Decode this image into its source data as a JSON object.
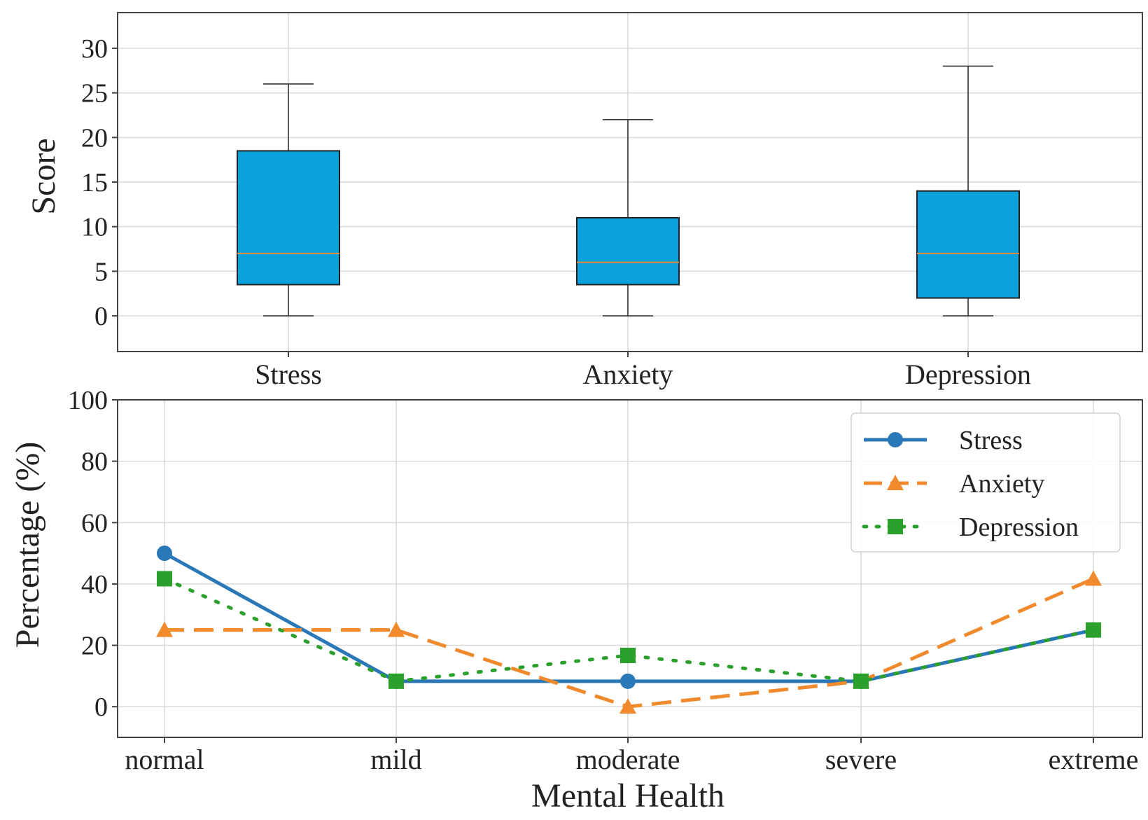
{
  "chart_data": [
    {
      "type": "box",
      "ylabel": "Score",
      "xlabel": "",
      "ylim": [
        -4,
        34
      ],
      "yticks": [
        0,
        5,
        10,
        15,
        20,
        25,
        30
      ],
      "grid": true,
      "box_color": "#0aa2dd",
      "median_color": "#e08a3c",
      "categories": [
        "Stress",
        "Anxiety",
        "Depression"
      ],
      "boxes": [
        {
          "name": "Stress",
          "min": 0,
          "q1": 3.5,
          "median": 7,
          "q3": 18.5,
          "max": 26
        },
        {
          "name": "Anxiety",
          "min": 0,
          "q1": 3.5,
          "median": 6,
          "q3": 11,
          "max": 22
        },
        {
          "name": "Depression",
          "min": 0,
          "q1": 2,
          "median": 7,
          "q3": 14,
          "max": 28
        }
      ]
    },
    {
      "type": "line",
      "xlabel": "Mental Health",
      "ylabel": "Percentage (%)",
      "ylim": [
        -10,
        100
      ],
      "yticks": [
        0,
        20,
        40,
        60,
        80,
        100
      ],
      "grid": true,
      "legend_position": "top-right",
      "categories": [
        "normal",
        "mild",
        "moderate",
        "severe",
        "extreme"
      ],
      "series": [
        {
          "name": "Stress",
          "values": [
            50,
            8.3,
            8.3,
            8.3,
            25
          ],
          "color": "#2a78b8",
          "marker": "circle",
          "linestyle": "solid"
        },
        {
          "name": "Anxiety",
          "values": [
            25,
            25,
            0,
            8.3,
            41.7
          ],
          "color": "#f08a2c",
          "marker": "triangle",
          "linestyle": "dashed"
        },
        {
          "name": "Depression",
          "values": [
            41.7,
            8.3,
            16.7,
            8.3,
            25
          ],
          "color": "#2ca02c",
          "marker": "square",
          "linestyle": "dotted"
        }
      ]
    }
  ]
}
